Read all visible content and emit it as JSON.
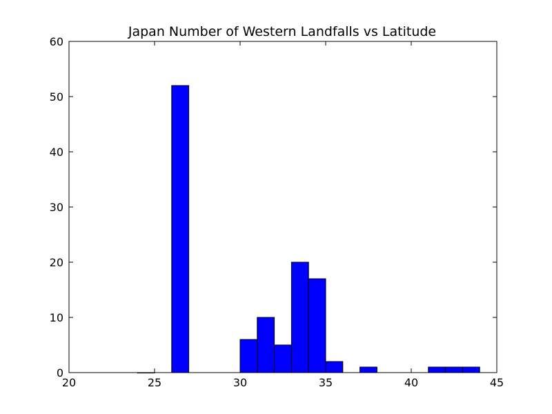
{
  "chart_data": {
    "type": "bar",
    "title": "Japan Number of Western Landfalls vs Latitude",
    "xlabel": "",
    "ylabel": "",
    "xlim": [
      20,
      45
    ],
    "ylim": [
      0,
      60
    ],
    "xticks": [
      "20",
      "25",
      "30",
      "35",
      "40",
      "45"
    ],
    "yticks": [
      "0",
      "10",
      "20",
      "30",
      "40",
      "50",
      "60"
    ],
    "grid": false,
    "legend": "none",
    "bar_color": "#0000ff",
    "bins": [
      {
        "x0": 24,
        "x1": 25,
        "count": 0
      },
      {
        "x0": 26,
        "x1": 27,
        "count": 52
      },
      {
        "x0": 30,
        "x1": 31,
        "count": 6
      },
      {
        "x0": 31,
        "x1": 32,
        "count": 10
      },
      {
        "x0": 32,
        "x1": 33,
        "count": 5
      },
      {
        "x0": 33,
        "x1": 34,
        "count": 20
      },
      {
        "x0": 34,
        "x1": 35,
        "count": 17
      },
      {
        "x0": 35,
        "x1": 36,
        "count": 2
      },
      {
        "x0": 37,
        "x1": 38,
        "count": 1
      },
      {
        "x0": 41,
        "x1": 42,
        "count": 1
      },
      {
        "x0": 42,
        "x1": 43,
        "count": 1
      },
      {
        "x0": 43,
        "x1": 44,
        "count": 1
      }
    ]
  }
}
